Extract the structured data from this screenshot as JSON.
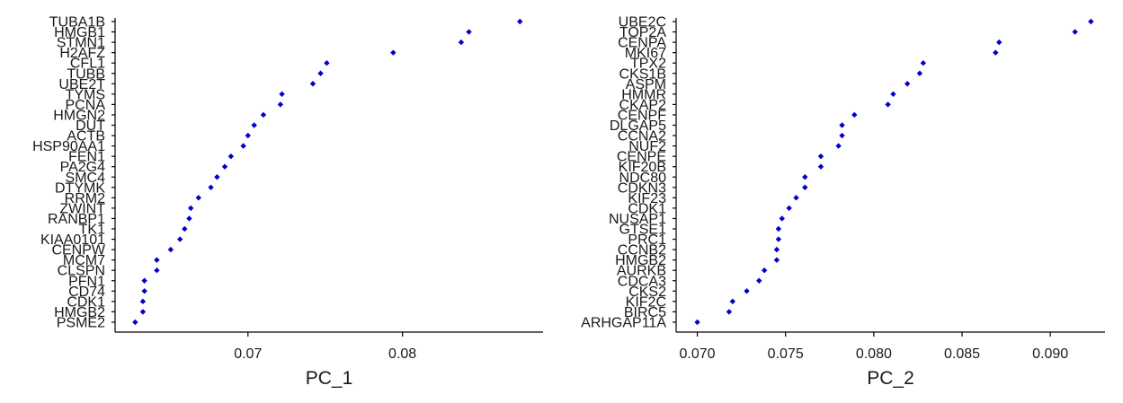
{
  "chart_data": [
    {
      "type": "scatter",
      "xlabel": "PC_1",
      "xticks": [
        0.07,
        0.08
      ],
      "xlim": [
        0.0614,
        0.0891
      ],
      "point_color": "#0000cd",
      "genes": [
        "TUBA1B",
        "HMGB1",
        "STMN1",
        "H2AFZ",
        "CFL1",
        "TUBB",
        "UBE2T",
        "TYMS",
        "PCNA",
        "HMGN2",
        "DUT",
        "ACTB",
        "HSP90AA1",
        "FEN1",
        "PA2G4",
        "SMC4",
        "DTYMK",
        "RRM2",
        "ZWINT",
        "RANBP1",
        "TK1",
        "KIAA0101",
        "CENPW",
        "MCM7",
        "CLSPN",
        "PFN1",
        "CD74",
        "CDK1",
        "HMGB2",
        "PSME2"
      ],
      "values": [
        0.0876,
        0.0843,
        0.0838,
        0.0794,
        0.0751,
        0.0747,
        0.0742,
        0.0722,
        0.0721,
        0.071,
        0.0704,
        0.07,
        0.0697,
        0.0689,
        0.0685,
        0.068,
        0.0676,
        0.0668,
        0.0663,
        0.0662,
        0.0659,
        0.0656,
        0.065,
        0.0641,
        0.0641,
        0.0633,
        0.0633,
        0.0632,
        0.0632,
        0.0627
      ]
    },
    {
      "type": "scatter",
      "xlabel": "PC_2",
      "xticks": [
        0.07,
        0.075,
        0.08,
        0.085,
        0.09
      ],
      "xlim": [
        0.0688,
        0.0931
      ],
      "point_color": "#0000cd",
      "genes": [
        "UBE2C",
        "TOP2A",
        "CENPA",
        "MKI67",
        "TPX2",
        "CKS1B",
        "ASPM",
        "HMMR",
        "CKAP2",
        "CENPF",
        "DLGAP5",
        "CCNA2",
        "NUF2",
        "CENPE",
        "KIF20B",
        "NDC80",
        "CDKN3",
        "KIF23",
        "CDK1",
        "NUSAP1",
        "GTSE1",
        "PRC1",
        "CCNB2",
        "HMGB2",
        "AURKB",
        "CDCA3",
        "CKS2",
        "KIF2C",
        "BIRC5",
        "ARHGAP11A"
      ],
      "values": [
        0.0923,
        0.0914,
        0.0871,
        0.0869,
        0.0828,
        0.0826,
        0.0819,
        0.0811,
        0.0808,
        0.0789,
        0.0782,
        0.0782,
        0.078,
        0.077,
        0.077,
        0.0761,
        0.0761,
        0.0756,
        0.0752,
        0.0748,
        0.0746,
        0.0746,
        0.0745,
        0.0745,
        0.0738,
        0.0735,
        0.0728,
        0.072,
        0.0718,
        0.07
      ]
    }
  ]
}
